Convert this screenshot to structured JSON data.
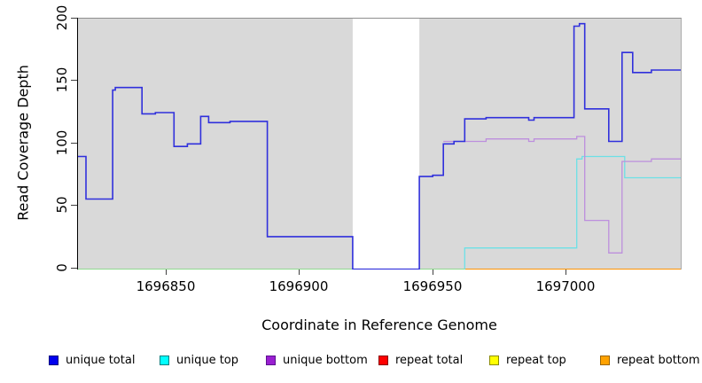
{
  "chart_data": {
    "type": "line",
    "subtype": "step-post",
    "title": "",
    "xlabel": "Coordinate in Reference Genome",
    "ylabel": "Read Coverage Depth",
    "xlim": [
      1696817,
      1697043
    ],
    "ylim": [
      0,
      200
    ],
    "x_ticks": [
      "1696850",
      "1696900",
      "1696950",
      "1697000"
    ],
    "x_tick_values": [
      1696850,
      1696900,
      1696950,
      1697000
    ],
    "y_ticks": [
      "0",
      "50",
      "100",
      "150",
      "200"
    ],
    "y_tick_values": [
      0,
      50,
      100,
      150,
      200
    ],
    "grid": false,
    "plot_bg": "#d9d9d9",
    "mask_region": {
      "from": 1696920,
      "to": 1696945,
      "color": "#ffffff",
      "note": "white band, no data plotted except unique total at 0"
    },
    "baseline_overlap": {
      "from": 1696817,
      "to": 1696962,
      "value": 0,
      "color": "#90d890",
      "note": "overlapping zero-value series render as a pale green baseline"
    },
    "series": [
      {
        "name": "unique total",
        "color": "#3030dc",
        "width": 1.6,
        "points": [
          [
            1696817,
            90
          ],
          [
            1696820,
            56
          ],
          [
            1696830,
            143
          ],
          [
            1696831,
            145
          ],
          [
            1696841,
            124
          ],
          [
            1696846,
            125
          ],
          [
            1696853,
            98
          ],
          [
            1696858,
            100
          ],
          [
            1696863,
            122
          ],
          [
            1696866,
            117
          ],
          [
            1696874,
            118
          ],
          [
            1696888,
            26
          ],
          [
            1696920,
            0
          ],
          [
            1696945,
            74
          ],
          [
            1696950,
            75
          ],
          [
            1696954,
            100
          ],
          [
            1696958,
            102
          ],
          [
            1696962,
            120
          ],
          [
            1696970,
            121
          ],
          [
            1696986,
            119
          ],
          [
            1696988,
            121
          ],
          [
            1697003,
            194
          ],
          [
            1697005,
            196
          ],
          [
            1697007,
            128
          ],
          [
            1697016,
            102
          ],
          [
            1697021,
            173
          ],
          [
            1697025,
            157
          ],
          [
            1697032,
            159
          ]
        ]
      },
      {
        "name": "unique top",
        "color": "#6ce0e6",
        "width": 1.3,
        "points": [
          [
            1696817,
            0
          ],
          [
            1696962,
            17
          ],
          [
            1697004,
            88
          ],
          [
            1697006,
            90
          ],
          [
            1697022,
            73
          ]
        ]
      },
      {
        "name": "unique bottom",
        "color": "#bd8fdd",
        "width": 1.3,
        "points": [
          [
            1696954,
            102
          ],
          [
            1696970,
            104
          ],
          [
            1696986,
            102
          ],
          [
            1696988,
            104
          ],
          [
            1697004,
            106
          ],
          [
            1697007,
            39
          ],
          [
            1697016,
            13
          ],
          [
            1697021,
            86
          ],
          [
            1697032,
            88
          ]
        ]
      },
      {
        "name": "repeat total",
        "color": "#cc0000",
        "width": 1.3,
        "points": [
          [
            1696817,
            0
          ]
        ]
      },
      {
        "name": "repeat top",
        "color": "#e8e800",
        "width": 1.3,
        "points": [
          [
            1696817,
            0
          ]
        ]
      },
      {
        "name": "repeat bottom",
        "color": "#ff9303",
        "width": 1.5,
        "points": [
          [
            1696817,
            0
          ]
        ]
      }
    ],
    "draw_order": [
      "repeat total",
      "repeat top",
      "repeat bottom",
      "unique top",
      "baseline_overlap",
      "unique bottom",
      "unique total"
    ],
    "legend": {
      "position": "bottom",
      "items": [
        {
          "label": "unique total",
          "fill": "#0000ee",
          "border": "#000080"
        },
        {
          "label": "unique top",
          "fill": "#00ffff",
          "border": "#008080"
        },
        {
          "label": "unique bottom",
          "fill": "#9a1fd1",
          "border": "#5c128f"
        },
        {
          "label": "repeat total",
          "fill": "#ff0000",
          "border": "#8b0000"
        },
        {
          "label": "repeat top",
          "fill": "#ffff00",
          "border": "#8b8b00"
        },
        {
          "label": "repeat bottom",
          "fill": "#ffa200",
          "border": "#9c6500"
        }
      ]
    }
  }
}
